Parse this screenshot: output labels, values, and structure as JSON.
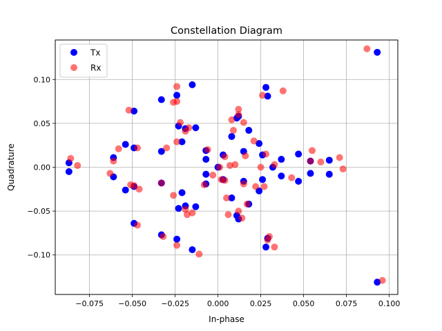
{
  "chart_data": {
    "type": "scatter",
    "title": "Constellation Diagram",
    "xlabel": "In-phase",
    "ylabel": "Quadrature",
    "xlim": [
      -0.095,
      0.105
    ],
    "ylim": [
      -0.145,
      0.145
    ],
    "xticks": [
      -0.075,
      -0.05,
      -0.025,
      0.0,
      0.025,
      0.05,
      0.075,
      0.1
    ],
    "xtick_labels": [
      "−0.075",
      "−0.050",
      "−0.025",
      "0.000",
      "0.025",
      "0.050",
      "0.075",
      "0.100"
    ],
    "yticks": [
      -0.1,
      -0.05,
      0.0,
      0.05,
      0.1
    ],
    "ytick_labels": [
      "−0.10",
      "−0.05",
      "0.00",
      "0.05",
      "0.10"
    ],
    "grid": true,
    "legend_position": "top-left",
    "series": [
      {
        "name": "Tx",
        "color": "#0000ff",
        "alpha": 1.0,
        "points": [
          [
            -0.087,
            0.005
          ],
          [
            -0.087,
            -0.005
          ],
          [
            -0.061,
            0.011
          ],
          [
            -0.061,
            -0.011
          ],
          [
            -0.054,
            0.026
          ],
          [
            -0.054,
            -0.026
          ],
          [
            -0.049,
            0.064
          ],
          [
            -0.049,
            -0.064
          ],
          [
            -0.049,
            0.022
          ],
          [
            -0.049,
            -0.022
          ],
          [
            -0.033,
            0.077
          ],
          [
            -0.033,
            -0.077
          ],
          [
            -0.033,
            0.018
          ],
          [
            -0.033,
            -0.018
          ],
          [
            -0.024,
            0.082
          ],
          [
            -0.024,
            -0.082
          ],
          [
            -0.023,
            0.047
          ],
          [
            -0.023,
            -0.047
          ],
          [
            -0.021,
            0.029
          ],
          [
            -0.021,
            -0.029
          ],
          [
            -0.019,
            0.044
          ],
          [
            -0.019,
            -0.044
          ],
          [
            -0.015,
            0.094
          ],
          [
            -0.015,
            -0.094
          ],
          [
            -0.013,
            0.045
          ],
          [
            -0.013,
            -0.045
          ],
          [
            -0.007,
            0.019
          ],
          [
            -0.007,
            -0.008
          ],
          [
            -0.007,
            0.009
          ],
          [
            -0.007,
            -0.019
          ],
          [
            0.0,
            0.0
          ],
          [
            0.003,
            0.014
          ],
          [
            0.003,
            -0.014
          ],
          [
            0.008,
            0.035
          ],
          [
            0.008,
            -0.035
          ],
          [
            0.011,
            0.056
          ],
          [
            0.011,
            -0.055
          ],
          [
            0.012,
            0.058
          ],
          [
            0.012,
            -0.059
          ],
          [
            0.015,
            0.018
          ],
          [
            0.015,
            -0.016
          ],
          [
            0.018,
            0.042
          ],
          [
            0.018,
            -0.042
          ],
          [
            0.024,
            0.027
          ],
          [
            0.024,
            -0.027
          ],
          [
            0.026,
            0.014
          ],
          [
            0.026,
            -0.014
          ],
          [
            0.028,
            0.091
          ],
          [
            0.028,
            -0.091
          ],
          [
            0.029,
            0.081
          ],
          [
            0.029,
            -0.081
          ],
          [
            0.032,
            0.0
          ],
          [
            0.037,
            0.009
          ],
          [
            0.037,
            -0.01
          ],
          [
            0.047,
            0.015
          ],
          [
            0.047,
            -0.016
          ],
          [
            0.054,
            0.007
          ],
          [
            0.054,
            -0.007
          ],
          [
            0.065,
            0.008
          ],
          [
            0.065,
            -0.008
          ],
          [
            0.093,
            0.131
          ],
          [
            0.093,
            -0.131
          ]
        ]
      },
      {
        "name": "Rx",
        "color": "#ff0000",
        "alpha": 0.55,
        "points": [
          [
            -0.086,
            0.01
          ],
          [
            -0.082,
            0.002
          ],
          [
            -0.063,
            -0.007
          ],
          [
            -0.061,
            0.007
          ],
          [
            -0.058,
            0.021
          ],
          [
            -0.052,
            0.065
          ],
          [
            -0.051,
            -0.02
          ],
          [
            -0.049,
            -0.021
          ],
          [
            -0.047,
            0.022
          ],
          [
            -0.047,
            -0.066
          ],
          [
            -0.046,
            -0.025
          ],
          [
            -0.033,
            -0.018
          ],
          [
            -0.032,
            -0.079
          ],
          [
            -0.03,
            0.022
          ],
          [
            -0.026,
            -0.032
          ],
          [
            -0.026,
            0.074
          ],
          [
            -0.024,
            0.092
          ],
          [
            -0.024,
            0.075
          ],
          [
            -0.024,
            0.029
          ],
          [
            -0.024,
            -0.089
          ],
          [
            -0.022,
            0.051
          ],
          [
            -0.019,
            0.041
          ],
          [
            -0.019,
            -0.048
          ],
          [
            -0.018,
            -0.054
          ],
          [
            -0.017,
            0.045
          ],
          [
            -0.015,
            -0.052
          ],
          [
            -0.011,
            -0.099
          ],
          [
            -0.008,
            -0.02
          ],
          [
            -0.006,
            0.02
          ],
          [
            -0.003,
            -0.009
          ],
          [
            0.001,
            0.0
          ],
          [
            0.002,
            -0.014
          ],
          [
            0.004,
            0.012
          ],
          [
            0.004,
            -0.015
          ],
          [
            0.005,
            -0.035
          ],
          [
            0.006,
            -0.054
          ],
          [
            0.007,
            0.002
          ],
          [
            0.008,
            0.054
          ],
          [
            0.009,
            0.042
          ],
          [
            0.01,
            0.003
          ],
          [
            0.012,
            -0.05
          ],
          [
            0.012,
            0.066
          ],
          [
            0.012,
            0.06
          ],
          [
            0.014,
            -0.058
          ],
          [
            0.015,
            0.051
          ],
          [
            0.015,
            -0.019
          ],
          [
            0.016,
            0.013
          ],
          [
            0.017,
            -0.042
          ],
          [
            0.021,
            0.03
          ],
          [
            0.022,
            -0.022
          ],
          [
            0.025,
            0.0
          ],
          [
            0.026,
            0.082
          ],
          [
            0.027,
            -0.022
          ],
          [
            0.028,
            0.015
          ],
          [
            0.029,
            -0.083
          ],
          [
            0.03,
            -0.079
          ],
          [
            0.033,
            0.003
          ],
          [
            0.033,
            -0.091
          ],
          [
            0.038,
            0.087
          ],
          [
            0.043,
            -0.012
          ],
          [
            0.054,
            0.007
          ],
          [
            0.055,
            0.019
          ],
          [
            0.06,
            0.006
          ],
          [
            0.071,
            0.011
          ],
          [
            0.073,
            -0.002
          ],
          [
            0.087,
            0.135
          ],
          [
            0.096,
            -0.129
          ]
        ]
      }
    ]
  }
}
